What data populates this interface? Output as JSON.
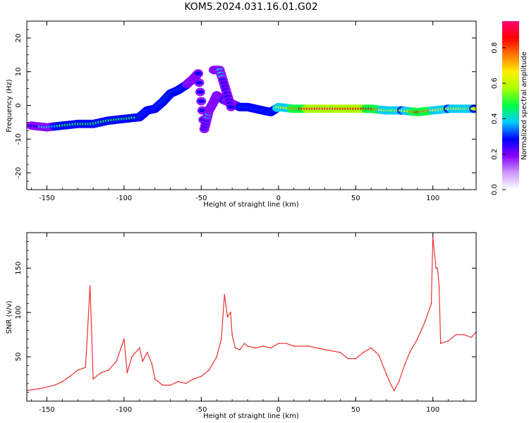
{
  "figure": {
    "title": "KOM5.2024.031.16.01.G02"
  },
  "chart_data": [
    {
      "type": "heatmap",
      "xlabel": "Height of straight line (km)",
      "ylabel": "Frequency (Hz)",
      "xlim": [
        -163,
        128
      ],
      "ylim": [
        -25,
        25
      ],
      "xticks": [
        -150,
        -100,
        -50,
        0,
        50,
        100
      ],
      "yticks": [
        -20,
        -10,
        0,
        10,
        20
      ],
      "colorbar": {
        "label": "Normalized spectral amplitude",
        "range": [
          0.0,
          0.95
        ],
        "ticks": [
          0.0,
          0.2,
          0.4,
          0.6,
          0.8
        ],
        "colormap": [
          "#ffffff",
          "#cc99ff",
          "#8800ff",
          "#0000ff",
          "#00ccff",
          "#00ff44",
          "#aaff00",
          "#ffee00",
          "#ff7700",
          "#ff0000",
          "#ff0077"
        ]
      },
      "trace": {
        "x": [
          -160,
          -150,
          -140,
          -130,
          -120,
          -110,
          -100,
          -90,
          -85,
          -80,
          -75,
          -70,
          -65,
          -60,
          -55,
          -52,
          -48,
          -45,
          -42,
          -40,
          -35,
          -30,
          -25,
          -20,
          -15,
          -10,
          -5,
          0,
          10,
          20,
          30,
          40,
          50,
          60,
          70,
          80,
          90,
          100,
          110,
          120,
          128
        ],
        "y": [
          -6,
          -6.5,
          -6,
          -5.5,
          -5.5,
          -4.5,
          -4,
          -3.5,
          -1.5,
          -1,
          1,
          3.5,
          4.5,
          6,
          8,
          9.5,
          -7,
          -1.5,
          1,
          3,
          1.5,
          0.5,
          -0.5,
          -0.5,
          -1,
          -1.5,
          -2,
          -0.5,
          -1,
          -1,
          -1,
          -1,
          -1,
          -1,
          -1.5,
          -1.5,
          -2,
          -1.5,
          -1,
          -1,
          -1
        ],
        "amplitude": [
          0.3,
          0.35,
          0.45,
          0.5,
          0.5,
          0.45,
          0.45,
          0.5,
          0.4,
          0.4,
          0.45,
          0.5,
          0.45,
          0.4,
          0.3,
          0.3,
          0.3,
          0.35,
          0.35,
          0.35,
          0.4,
          0.35,
          0.4,
          0.45,
          0.4,
          0.45,
          0.4,
          0.6,
          0.75,
          0.9,
          0.95,
          0.9,
          0.9,
          0.85,
          0.6,
          0.55,
          0.85,
          0.7,
          0.55,
          0.7,
          0.5
        ]
      },
      "secondary_trace": {
        "x": [
          -42,
          -38,
          -34,
          -30
        ],
        "y": [
          10.5,
          10.5,
          4.5,
          -1.5
        ],
        "amplitude": [
          0.35,
          0.35,
          0.3,
          0.3
        ]
      }
    },
    {
      "type": "line",
      "xlabel": "Height of straight line (km)",
      "ylabel": "SNR (v/v)",
      "xlim": [
        -163,
        128
      ],
      "ylim": [
        0,
        190
      ],
      "xticks": [
        -150,
        -100,
        -50,
        0,
        50,
        100
      ],
      "yticks": [
        50,
        100,
        150
      ],
      "series": [
        {
          "color": "#ee3030",
          "x": [
            -163,
            -155,
            -145,
            -140,
            -135,
            -130,
            -125,
            -122,
            -120,
            -115,
            -110,
            -105,
            -100,
            -98,
            -95,
            -90,
            -88,
            -85,
            -82,
            -80,
            -75,
            -70,
            -65,
            -60,
            -55,
            -50,
            -45,
            -40,
            -37,
            -35,
            -33,
            -31,
            -30,
            -28,
            -25,
            -22,
            -20,
            -15,
            -10,
            -5,
            0,
            5,
            10,
            20,
            30,
            40,
            45,
            50,
            55,
            60,
            65,
            70,
            73,
            75,
            78,
            82,
            85,
            90,
            95,
            99,
            100,
            102,
            103,
            104,
            105,
            110,
            115,
            120,
            125,
            128
          ],
          "y": [
            12,
            14,
            18,
            22,
            28,
            35,
            38,
            130,
            25,
            32,
            35,
            45,
            70,
            32,
            50,
            60,
            45,
            55,
            42,
            25,
            18,
            18,
            22,
            20,
            25,
            28,
            35,
            50,
            70,
            120,
            95,
            100,
            75,
            60,
            58,
            65,
            62,
            60,
            62,
            60,
            65,
            65,
            62,
            62,
            58,
            55,
            48,
            48,
            55,
            60,
            52,
            30,
            18,
            12,
            22,
            42,
            55,
            70,
            90,
            110,
            185,
            150,
            150,
            130,
            65,
            68,
            75,
            75,
            72,
            78
          ]
        }
      ]
    }
  ]
}
